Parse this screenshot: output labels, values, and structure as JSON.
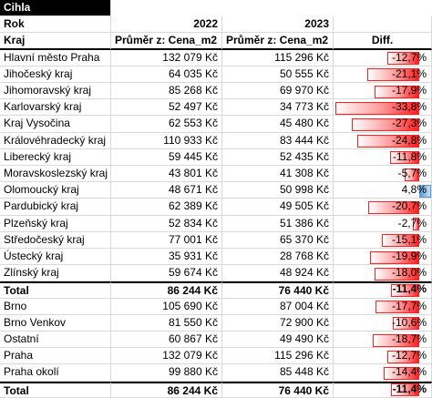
{
  "title": "Cihla",
  "year_row": [
    "Rok",
    "2022",
    "2023"
  ],
  "header": [
    "Kraj",
    "Průměr z: Cena_m2",
    "Průměr z: Cena_m2",
    "Diff."
  ],
  "groups": [
    {
      "rows": [
        [
          "Hlavní město Praha",
          "132 079 Kč",
          "115 296 Kč",
          {
            "value": -12.7,
            "label": "-12,7%"
          }
        ],
        [
          "Jihočeský kraj",
          "64 035 Kč",
          "50 555 Kč",
          {
            "value": -21.1,
            "label": "-21,1%"
          }
        ],
        [
          "Jihomoravský kraj",
          "85 268 Kč",
          "69 970 Kč",
          {
            "value": -17.9,
            "label": "-17,9%"
          }
        ],
        [
          "Karlovarský kraj",
          "52 497 Kč",
          "34 773 Kč",
          {
            "value": -33.8,
            "label": "-33,8%"
          }
        ],
        [
          "Kraj Vysočina",
          "62 553 Kč",
          "45 480 Kč",
          {
            "value": -27.3,
            "label": "-27,3%"
          }
        ],
        [
          "Královéhradecký kraj",
          "110 933 Kč",
          "83 444 Kč",
          {
            "value": -24.8,
            "label": "-24,8%"
          }
        ],
        [
          "Liberecký kraj",
          "59 445 Kč",
          "52 435 Kč",
          {
            "value": -11.8,
            "label": "-11,8%"
          }
        ],
        [
          "Moravskoslezský kraj",
          "43 801 Kč",
          "41 308 Kč",
          {
            "value": -5.7,
            "label": "-5,7%"
          }
        ],
        [
          "Olomoucký kraj",
          "48 671 Kč",
          "50 998 Kč",
          {
            "value": 4.8,
            "label": "4,8%"
          }
        ],
        [
          "Pardubický kraj",
          "62 389 Kč",
          "49 505 Kč",
          {
            "value": -20.7,
            "label": "-20,7%"
          }
        ],
        [
          "Plzeňský kraj",
          "52 834 Kč",
          "51 386 Kč",
          {
            "value": -2.7,
            "label": "-2,7%"
          }
        ],
        [
          "Středočeský kraj",
          "77 001 Kč",
          "65 370 Kč",
          {
            "value": -15.1,
            "label": "-15,1%"
          }
        ],
        [
          "Ústecký kraj",
          "35 931 Kč",
          "28 768 Kč",
          {
            "value": -19.9,
            "label": "-19,9%"
          }
        ],
        [
          "Zlínský kraj",
          "59 674 Kč",
          "48 924 Kč",
          {
            "value": -18.0,
            "label": "-18,0%"
          }
        ]
      ],
      "total": [
        "Total",
        "86 244 Kč",
        "76 440 Kč",
        {
          "value": -11.4,
          "label": "-11,4%"
        }
      ]
    },
    {
      "rows": [
        [
          "Brno",
          "105 690 Kč",
          "87 004 Kč",
          {
            "value": -17.7,
            "label": "-17,7%"
          }
        ],
        [
          "Brno Venkov",
          "81 550 Kč",
          "72 900 Kč",
          {
            "value": -10.6,
            "label": "-10,6%"
          }
        ],
        [
          "Ostatní",
          "60 867 Kč",
          "49 490 Kč",
          {
            "value": -18.7,
            "label": "-18,7%"
          }
        ],
        [
          "Praha",
          "132 079 Kč",
          "115 296 Kč",
          {
            "value": -12.7,
            "label": "-12,7%"
          }
        ],
        [
          "Praha okolí",
          "99 880 Kč",
          "85 448 Kč",
          {
            "value": -14.4,
            "label": "-14,4%"
          }
        ]
      ],
      "total": [
        "Total",
        "86 244 Kč",
        "76 440 Kč",
        {
          "value": -11.4,
          "label": "-11,4%"
        }
      ]
    }
  ]
}
